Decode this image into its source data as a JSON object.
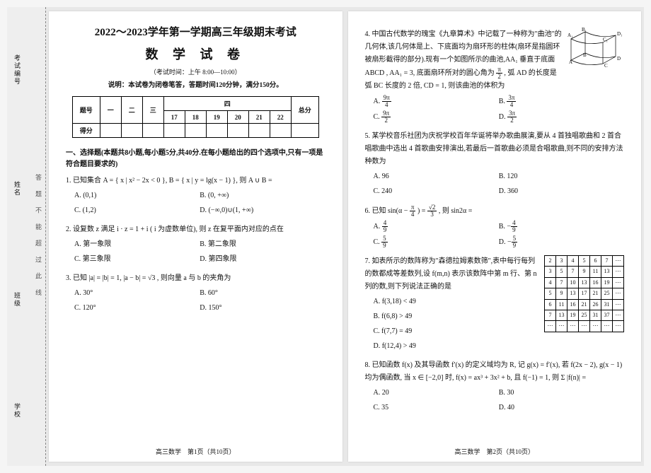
{
  "binding": {
    "labels": [
      "考试编号",
      "姓名",
      "班级",
      "学校"
    ],
    "fold_markers": "答 题 不 能 超 过 此 线"
  },
  "header": {
    "title_main": "2022～2023学年第一学期高三年级期末考试",
    "title_sub": "数 学 试 卷",
    "exam_time": "（考试时间：上午 8:00—10:00）",
    "instruction": "说明：本试卷为闭卷笔答，答题时间120分钟，满分150分。"
  },
  "score_table": {
    "row1": [
      "题号",
      "一",
      "二",
      "三",
      "17",
      "18",
      "19",
      "20",
      "21",
      "22",
      "总分"
    ],
    "four_header": "四",
    "row2_label": "得分"
  },
  "sectionA": "一、选择题(本题共8小题,每小题5分,共40分.在每小题给出的四个选项中,只有一项是符合题目要求的)",
  "q1": {
    "body": "1. 已知集合 A = { x | x² − 2x < 0 }, B = { x | y = lg(x − 1) }, 则 A ∪ B =",
    "A": "A. (0,1)",
    "B": "B. (0, +∞)",
    "C": "C. (1,2)",
    "D": "D. (−∞,0)∪(1, +∞)"
  },
  "q2": {
    "body": "2. 设复数 z 满足 i · z = 1 + i ( i 为虚数单位), 则 z 在复平面内对应的点在",
    "A": "A. 第一象限",
    "B": "B. 第二象限",
    "C": "C. 第三象限",
    "D": "D. 第四象限"
  },
  "q3": {
    "body": "3. 已知 |a| = |b| = 1, |a − b| = √3 , 则向量 a 与 b 的夹角为",
    "A": "A. 30°",
    "B": "B. 60°",
    "C": "C. 120°",
    "D": "D. 150°"
  },
  "q4": {
    "body_pre": "4. 中国古代数学的瑰宝《九章算术》中记载了一种称为\"曲池\"的几何体,该几何体是上、下底面均为扇环形的柱体(扇环是指圆环被扇形截得的部分).现有一个如图所示的曲池,AA₁ 垂直于底面 ABCD , AA₁ = 3, 底面扇环所对的圆心角为 ",
    "body_frac_num": "π",
    "body_frac_den": "2",
    "body_post": ", 弧 AD 的长度是弧 BC 长度的 2 倍, CD = 1, 则该曲池的体积为",
    "A_num": "9π",
    "A_den": "4",
    "B_num": "3π",
    "B_den": "4",
    "C_num": "9π",
    "C_den": "2",
    "D_num": "3π",
    "D_den": "2",
    "fig": {
      "A": "A",
      "B": "B",
      "C": "C",
      "D": "D",
      "A1": "A₁",
      "B1": "B₁",
      "C1": "C₁",
      "D1": "D₁"
    }
  },
  "q5": {
    "body": "5. 某学校音乐社团为庆祝学校百年华诞将举办歌曲展演,要从 4 首独唱歌曲和 2 首合唱歌曲中选出 4 首歌曲安排演出,若最后一首歌曲必须是合唱歌曲,则不同的安排方法种数为",
    "A": "A. 96",
    "B": "B. 120",
    "C": "C. 240",
    "D": "D. 360"
  },
  "q6": {
    "body_pre": "6. 已知 sin(α − ",
    "f1_num": "π",
    "f1_den": "4",
    "body_mid": ") = ",
    "f2_num": "√2",
    "f2_den": "3",
    "body_post": ", 则 sin2α =",
    "A_num": "4",
    "A_den": "9",
    "A_sign": "",
    "B_num": "4",
    "B_den": "9",
    "B_sign": "−",
    "C_num": "5",
    "C_den": "9",
    "C_sign": "",
    "D_num": "5",
    "D_den": "9",
    "D_sign": "−"
  },
  "q7": {
    "body": "7. 如表所示的数阵称为\"森德拉姆素数筛\",表中每行每列的数都成等差数列,设 f(m,n) 表示该数阵中第 m 行、第 n 列的数,则下列说法正确的是",
    "A": "A. f(3,18) < 49",
    "B": "B. f(6,8) > 49",
    "C": "C. f(7,7) = 49",
    "D": "D. f(12,4) > 49",
    "table": [
      [
        "2",
        "3",
        "4",
        "5",
        "6",
        "7",
        "⋯"
      ],
      [
        "3",
        "5",
        "7",
        "9",
        "11",
        "13",
        "⋯"
      ],
      [
        "4",
        "7",
        "10",
        "13",
        "16",
        "19",
        "⋯"
      ],
      [
        "5",
        "9",
        "13",
        "17",
        "21",
        "25",
        "⋯"
      ],
      [
        "6",
        "11",
        "16",
        "21",
        "26",
        "31",
        "⋯"
      ],
      [
        "7",
        "13",
        "19",
        "25",
        "31",
        "37",
        "⋯"
      ],
      [
        "⋯",
        "⋯",
        "⋯",
        "⋯",
        "⋯",
        "⋯",
        "⋯"
      ]
    ]
  },
  "q8": {
    "body": "8. 已知函数 f(x) 及其导函数 f′(x) 的定义域均为 R, 记 g(x) = f′(x), 若 f(2x − 2), g(x − 1) 均为偶函数, 当 x ∈ [−2,0] 时, f(x) = ax³ + 3x² + b, 且 f(−1) = 1, 则 Σ |f(n)| =",
    "sum_sub": "n=1",
    "sum_sup": "20",
    "A": "A. 20",
    "B": "B. 30",
    "C": "C. 35",
    "D": "D. 40"
  },
  "footer1": "高三数学　第1页（共10页）",
  "footer2": "高三数学　第2页（共10页）"
}
